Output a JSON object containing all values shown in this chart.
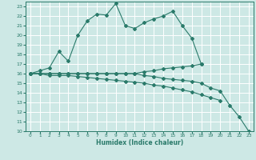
{
  "xlabel": "Humidex (Indice chaleur)",
  "background_color": "#cde8e5",
  "grid_color": "#ffffff",
  "line_color": "#2a7a6a",
  "xlim": [
    -0.5,
    23.5
  ],
  "ylim": [
    10,
    23.5
  ],
  "xticks": [
    0,
    1,
    2,
    3,
    4,
    5,
    6,
    7,
    8,
    9,
    10,
    11,
    12,
    13,
    14,
    15,
    16,
    17,
    18,
    19,
    20,
    21,
    22,
    23
  ],
  "yticks": [
    10,
    11,
    12,
    13,
    14,
    15,
    16,
    17,
    18,
    19,
    20,
    21,
    22,
    23
  ],
  "line1_x": [
    0,
    1,
    2,
    3,
    4,
    5,
    6,
    7,
    8,
    9,
    10,
    11,
    12,
    13,
    14,
    15,
    16,
    17,
    18
  ],
  "line1_y": [
    16,
    16.3,
    16.6,
    18.3,
    17.3,
    20.0,
    21.5,
    22.2,
    22.1,
    23.3,
    21.0,
    20.7,
    21.3,
    21.7,
    22.0,
    22.5,
    21.0,
    19.7,
    17.0
  ],
  "line2_x": [
    0,
    1,
    2,
    3,
    4,
    5,
    6,
    7,
    8,
    9,
    10,
    11,
    12,
    13,
    14,
    15,
    16,
    17,
    18
  ],
  "line2_y": [
    16,
    16,
    16,
    16,
    16,
    16,
    16,
    16,
    16,
    16,
    16,
    16,
    16.2,
    16.3,
    16.5,
    16.6,
    16.7,
    16.8,
    17.0
  ],
  "line3_x": [
    0,
    1,
    2,
    3,
    4,
    5,
    6,
    7,
    8,
    9,
    10,
    11,
    12,
    13,
    14,
    15,
    16,
    17,
    18,
    19,
    20,
    21,
    22,
    23
  ],
  "line3_y": [
    16,
    16,
    16,
    16,
    16,
    16,
    16,
    16,
    16,
    16,
    16,
    16,
    15.8,
    15.7,
    15.5,
    15.4,
    15.3,
    15.2,
    15.0,
    14.5,
    14.2,
    12.7,
    11.5,
    10.0
  ],
  "line4_x": [
    0,
    1,
    2,
    3,
    4,
    5,
    6,
    7,
    8,
    9,
    10,
    11,
    12,
    13,
    14,
    15,
    16,
    17,
    18,
    19,
    20
  ],
  "line4_y": [
    16,
    16,
    15.8,
    15.8,
    15.8,
    15.7,
    15.6,
    15.5,
    15.4,
    15.3,
    15.2,
    15.1,
    15.0,
    14.8,
    14.7,
    14.5,
    14.3,
    14.1,
    13.8,
    13.5,
    13.2
  ]
}
